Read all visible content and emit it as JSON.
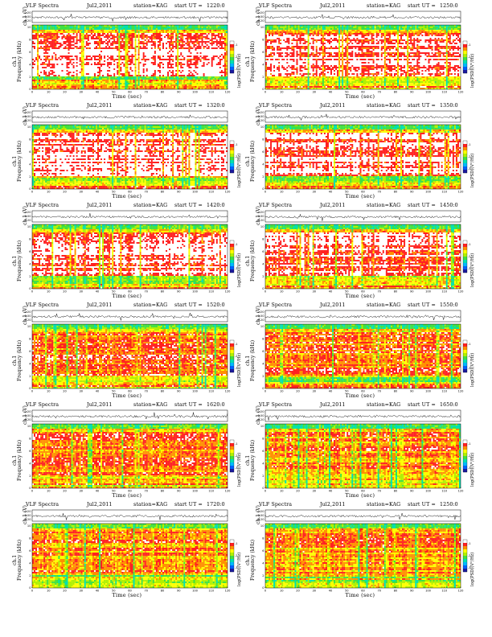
{
  "common": {
    "title": "VLF Spectra",
    "date": "Jul2,2011",
    "station": "station=KAG",
    "start_prefix": "start  UT =",
    "wave_ylabel": "ch.1 (V)",
    "spec_ylabel_top": "ch.1",
    "spec_ylabel": "Frequency (kHz)",
    "xlabel": "Time (sec)",
    "colorbar_label": "log(PSD)(V²/Hz)",
    "colorbar_ticks": [
      "-1",
      "-2",
      "-3"
    ],
    "wave_ticks": [
      "0.20",
      "0.00",
      "-0.20"
    ],
    "freq_ticks": [
      "10",
      "8",
      "6",
      "4",
      "2",
      "0"
    ],
    "time_ticks": [
      "0",
      "10",
      "20",
      "30",
      "40",
      "50",
      "60",
      "70",
      "80",
      "90",
      "100",
      "110",
      "120"
    ],
    "colors": {
      "colormap": [
        "#1a1aa0",
        "#0060ff",
        "#00b8ff",
        "#00e0b0",
        "#40e040",
        "#b0f000",
        "#ffff00",
        "#ff9000",
        "#ff2020",
        "#ffffff"
      ]
    }
  },
  "chart_data": [
    {
      "type": "heatmap",
      "start_ut": "1220:0",
      "xlim": [
        0,
        120
      ],
      "ylim": [
        0,
        10
      ],
      "wave_ylim": [
        -0.2,
        0.2
      ]
    },
    {
      "type": "heatmap",
      "start_ut": "1250:0",
      "xlim": [
        0,
        120
      ],
      "ylim": [
        0,
        10
      ],
      "wave_ylim": [
        -0.2,
        0.2
      ]
    },
    {
      "type": "heatmap",
      "start_ut": "1320:0",
      "xlim": [
        0,
        120
      ],
      "ylim": [
        0,
        10
      ],
      "wave_ylim": [
        -0.2,
        0.2
      ]
    },
    {
      "type": "heatmap",
      "start_ut": "1350:0",
      "xlim": [
        0,
        120
      ],
      "ylim": [
        0,
        10
      ],
      "wave_ylim": [
        -0.2,
        0.2
      ]
    },
    {
      "type": "heatmap",
      "start_ut": "1420:0",
      "xlim": [
        0,
        120
      ],
      "ylim": [
        0,
        10
      ],
      "wave_ylim": [
        -0.2,
        0.2
      ]
    },
    {
      "type": "heatmap",
      "start_ut": "1450:0",
      "xlim": [
        0,
        120
      ],
      "ylim": [
        0,
        10
      ],
      "wave_ylim": [
        -0.2,
        0.2
      ]
    },
    {
      "type": "heatmap",
      "start_ut": "1520:0",
      "xlim": [
        0,
        120
      ],
      "ylim": [
        0,
        10
      ],
      "wave_ylim": [
        -0.2,
        0.2
      ]
    },
    {
      "type": "heatmap",
      "start_ut": "1550:0",
      "xlim": [
        0,
        120
      ],
      "ylim": [
        0,
        10
      ],
      "wave_ylim": [
        -0.2,
        0.2
      ]
    },
    {
      "type": "heatmap",
      "start_ut": "1620:0",
      "xlim": [
        0,
        120
      ],
      "ylim": [
        0,
        10
      ],
      "wave_ylim": [
        -0.2,
        0.2
      ]
    },
    {
      "type": "heatmap",
      "start_ut": "1650:0",
      "xlim": [
        0,
        120
      ],
      "ylim": [
        0,
        10
      ],
      "wave_ylim": [
        -0.2,
        0.2
      ]
    },
    {
      "type": "heatmap",
      "start_ut": "1720:0",
      "xlim": [
        0,
        120
      ],
      "ylim": [
        0,
        10
      ],
      "wave_ylim": [
        -0.2,
        0.2
      ]
    },
    {
      "type": "heatmap",
      "start_ut": "1250:0",
      "xlim": [
        0,
        120
      ],
      "ylim": [
        0,
        10
      ],
      "wave_ylim": [
        -0.2,
        0.2
      ]
    }
  ]
}
